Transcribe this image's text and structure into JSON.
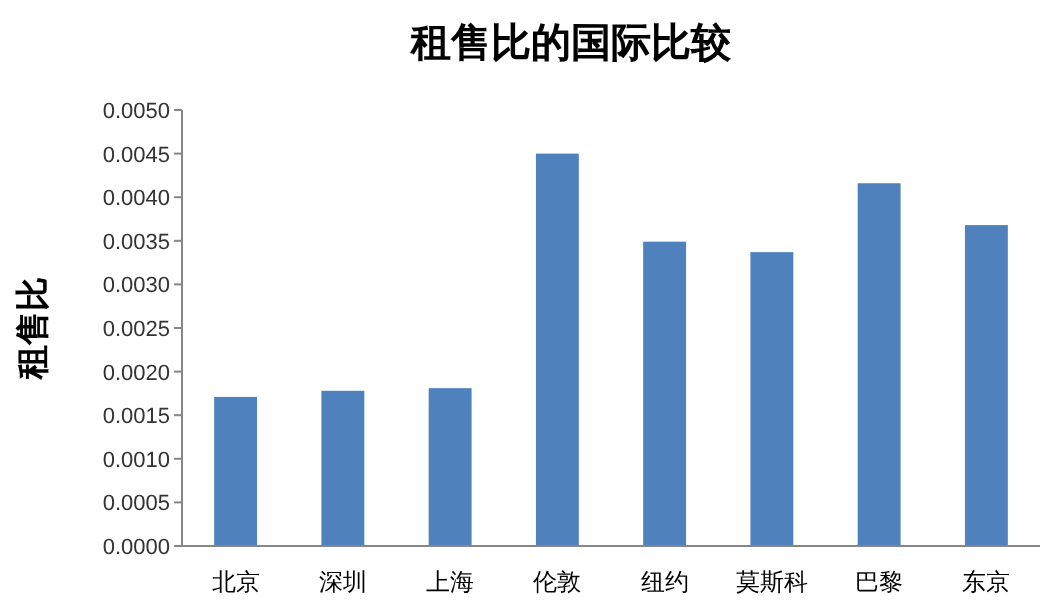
{
  "chart_data": {
    "type": "bar",
    "title": "租售比的国际比较",
    "ylabel": "租售比",
    "categories": [
      "北京",
      "深圳",
      "上海",
      "伦敦",
      "纽约",
      "莫斯科",
      "巴黎",
      "东京"
    ],
    "values": [
      0.00171,
      0.00178,
      0.00181,
      0.0045,
      0.00349,
      0.00337,
      0.00416,
      0.00368
    ],
    "color": "#4f81bd",
    "ylim": [
      0,
      0.005
    ],
    "yticks": [
      {
        "value": 0,
        "label": "0.0000"
      },
      {
        "value": 0.0005,
        "label": "0.0005"
      },
      {
        "value": 0.001,
        "label": "0.0010"
      },
      {
        "value": 0.0015,
        "label": "0.0015"
      },
      {
        "value": 0.002,
        "label": "0.0020"
      },
      {
        "value": 0.0025,
        "label": "0.0025"
      },
      {
        "value": 0.003,
        "label": "0.0030"
      },
      {
        "value": 0.0035,
        "label": "0.0035"
      },
      {
        "value": 0.004,
        "label": "0.0040"
      },
      {
        "value": 0.0045,
        "label": "0.0045"
      },
      {
        "value": 0.005,
        "label": "0.0050"
      }
    ],
    "grid": false
  }
}
